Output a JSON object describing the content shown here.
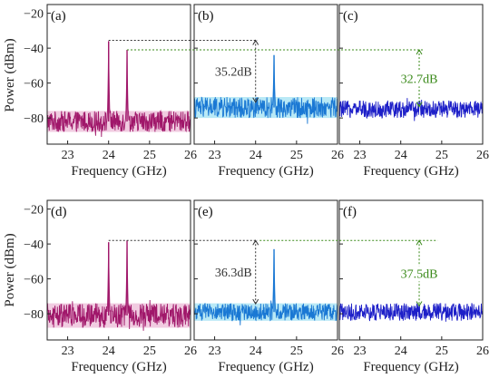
{
  "colors": {
    "magenta": "#a0176a",
    "magenta_noise": "#e6a3c9",
    "azure": "#1a78d4",
    "azure_noise": "#7fd7ee",
    "blue": "#1d1fc8",
    "annot_gray": "#333333",
    "annot_green": "#3a8a1a"
  },
  "ylabel": "Power (dBm)",
  "chart_data": [
    {
      "type": "line",
      "panel": "(a)",
      "row": 0,
      "col": 0,
      "xlabel": "Frequency (GHz)",
      "xlim": [
        22.5,
        26
      ],
      "ylim": [
        -95,
        -15
      ],
      "xticks": [
        "23",
        "24",
        "25",
        "26"
      ],
      "yticks": [
        "-20",
        "-40",
        "-60",
        "-80"
      ],
      "noise_floor": -82,
      "noise_spread": 6,
      "color": "magenta",
      "peaks": [
        {
          "x": 24.0,
          "y": -36
        },
        {
          "x": 24.45,
          "y": -41
        }
      ],
      "annotation": null
    },
    {
      "type": "line",
      "panel": "(b)",
      "row": 0,
      "col": 1,
      "xlabel": "Frequency (GHz)",
      "xlim": [
        22.5,
        26
      ],
      "ylim": [
        -95,
        -15
      ],
      "xticks": [
        "23",
        "24",
        "25",
        "26"
      ],
      "yticks": [],
      "noise_floor": -74,
      "noise_spread": 6,
      "color": "azure",
      "peaks": [
        {
          "x": 24.45,
          "y": -44
        }
      ],
      "annotation": {
        "text": "35.2dB",
        "x": 24.0,
        "y_top": -35.5,
        "y_bottom": -71,
        "color": "annot_gray"
      }
    },
    {
      "type": "line",
      "panel": "(c)",
      "row": 0,
      "col": 2,
      "xlabel": "Frequency (GHz)",
      "xlim": [
        22.5,
        26
      ],
      "ylim": [
        -95,
        -15
      ],
      "xticks": [
        "23",
        "24",
        "25",
        "26"
      ],
      "yticks": [],
      "noise_floor": -75,
      "noise_spread": 5,
      "color": "blue",
      "peaks": [],
      "annotation": {
        "text": "32.7dB",
        "x": 24.45,
        "y_top": -41,
        "y_bottom": -73.5,
        "color": "annot_green"
      }
    },
    {
      "type": "line",
      "panel": "(d)",
      "row": 1,
      "col": 0,
      "xlabel": "Frequency (GHz)",
      "xlim": [
        22.5,
        26
      ],
      "ylim": [
        -95,
        -15
      ],
      "xticks": [
        "23",
        "24",
        "25",
        "26"
      ],
      "yticks": [
        "-20",
        "-40",
        "-60",
        "-80"
      ],
      "noise_floor": -81,
      "noise_spread": 7,
      "color": "magenta",
      "peaks": [
        {
          "x": 24.0,
          "y": -39
        },
        {
          "x": 24.45,
          "y": -38
        }
      ],
      "annotation": null
    },
    {
      "type": "line",
      "panel": "(e)",
      "row": 1,
      "col": 1,
      "xlabel": "Frequency (GHz)",
      "xlim": [
        22.5,
        26
      ],
      "ylim": [
        -95,
        -15
      ],
      "xticks": [
        "23",
        "24",
        "25",
        "26"
      ],
      "yticks": [],
      "noise_floor": -79,
      "noise_spread": 5,
      "color": "azure",
      "peaks": [
        {
          "x": 24.45,
          "y": -43
        }
      ],
      "annotation": {
        "text": "36.3dB",
        "x": 24.0,
        "y_top": -38,
        "y_bottom": -74.3,
        "color": "annot_gray"
      }
    },
    {
      "type": "line",
      "panel": "(f)",
      "row": 1,
      "col": 2,
      "xlabel": "Frequency (GHz)",
      "xlim": [
        22.5,
        26
      ],
      "ylim": [
        -95,
        -15
      ],
      "xticks": [
        "23",
        "24",
        "25",
        "26"
      ],
      "yticks": [],
      "noise_floor": -79,
      "noise_spread": 5,
      "color": "blue",
      "peaks": [],
      "annotation": {
        "text": "37.5dB",
        "x": 24.45,
        "y_top": -38,
        "y_bottom": -75.5,
        "color": "annot_green"
      }
    }
  ]
}
